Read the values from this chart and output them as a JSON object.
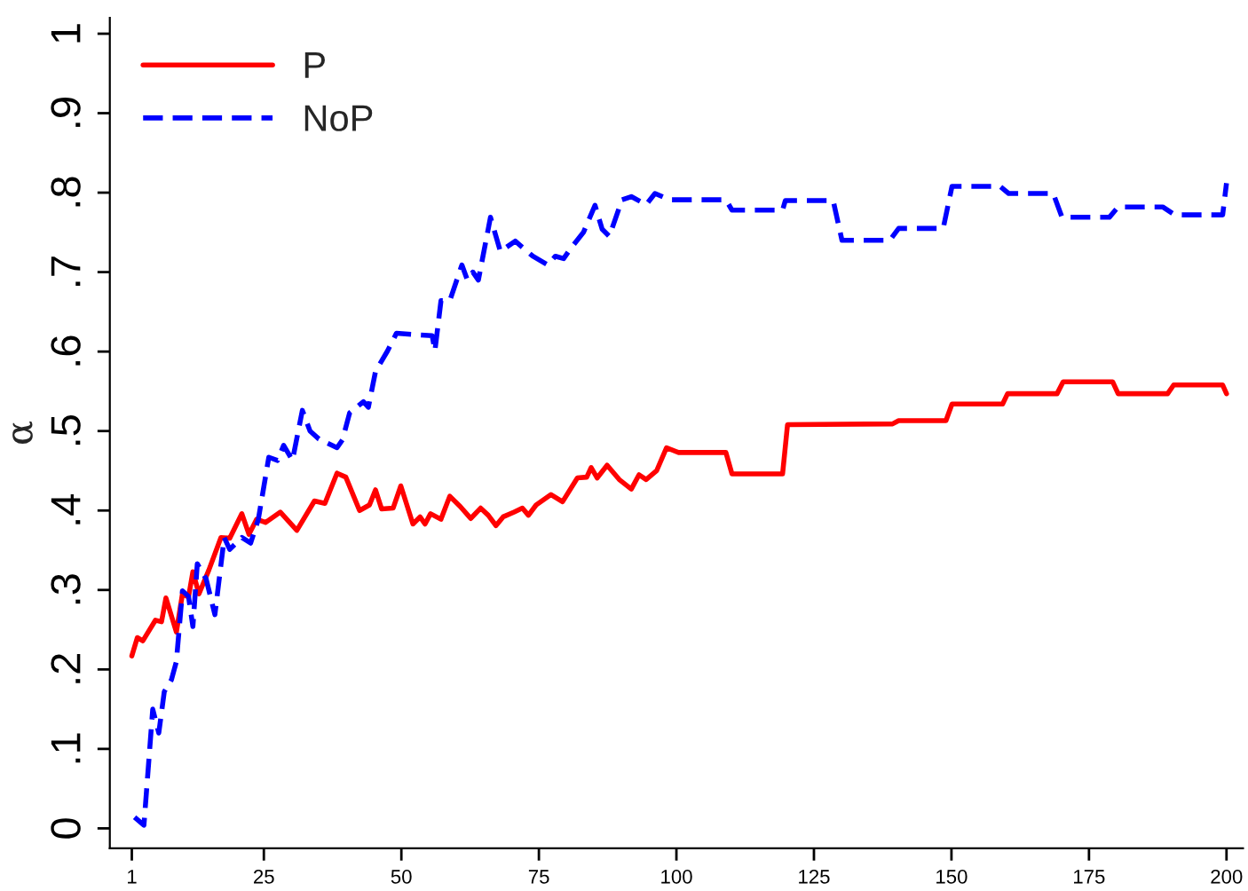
{
  "chart_data": {
    "type": "line",
    "ylabel": "α",
    "xlim": [
      -3,
      203
    ],
    "xticks": [
      1,
      25,
      50,
      75,
      100,
      125,
      150,
      175,
      200
    ],
    "ylim": [
      -0.025,
      1.02
    ],
    "yticks": [
      {
        "value": 0,
        "label": "0"
      },
      {
        "value": 0.1,
        "label": ".1"
      },
      {
        "value": 0.2,
        "label": ".2"
      },
      {
        "value": 0.3,
        "label": ".3"
      },
      {
        "value": 0.4,
        "label": ".4"
      },
      {
        "value": 0.5,
        "label": ".5"
      },
      {
        "value": 0.6,
        "label": ".6"
      },
      {
        "value": 0.7,
        "label": ".7"
      },
      {
        "value": 0.8,
        "label": ".8"
      },
      {
        "value": 0.9,
        "label": ".9"
      },
      {
        "value": 1,
        "label": "1"
      }
    ],
    "grid": false,
    "legend": "top left",
    "series": [
      {
        "name": "P",
        "color": "#ff0000",
        "line_style": "solid",
        "x": [
          1,
          2,
          3,
          5.3,
          6.4,
          7.2,
          9.1,
          10.2,
          11.3,
          12.1,
          13.2,
          15,
          17.2,
          18.8,
          21,
          22.3,
          23.7,
          25.3,
          28,
          31,
          34.2,
          36.1,
          38.3,
          39.9,
          42.4,
          44.2,
          45.3,
          46.4,
          48.5,
          49.9,
          52.1,
          53.4,
          54.3,
          55.3,
          57.2,
          58.8,
          60.7,
          62.6,
          64.4,
          65.8,
          67.2,
          68.5,
          70.5,
          72,
          73.1,
          74.5,
          77.2,
          79.3,
          82,
          83.7,
          84.5,
          85.6,
          87.4,
          89.6,
          91.8,
          93.2,
          94.5,
          96.4,
          98.2,
          100.4,
          109,
          110.1,
          119.3,
          120.2,
          139.3,
          140.4,
          149,
          150.1,
          159.3,
          160.2,
          169.2,
          170.3,
          179.3,
          180.3,
          189.3,
          190.4,
          199.3,
          200
        ],
        "values": [
          0.217,
          0.24,
          0.236,
          0.262,
          0.26,
          0.29,
          0.247,
          0.295,
          0.291,
          0.323,
          0.295,
          0.325,
          0.366,
          0.365,
          0.396,
          0.37,
          0.389,
          0.385,
          0.398,
          0.375,
          0.412,
          0.409,
          0.447,
          0.442,
          0.4,
          0.407,
          0.426,
          0.402,
          0.403,
          0.431,
          0.383,
          0.392,
          0.383,
          0.396,
          0.389,
          0.418,
          0.405,
          0.39,
          0.403,
          0.394,
          0.381,
          0.392,
          0.398,
          0.403,
          0.394,
          0.407,
          0.42,
          0.411,
          0.441,
          0.442,
          0.454,
          0.441,
          0.457,
          0.439,
          0.427,
          0.445,
          0.439,
          0.45,
          0.479,
          0.473,
          0.473,
          0.446,
          0.446,
          0.508,
          0.509,
          0.513,
          0.513,
          0.534,
          0.534,
          0.547,
          0.547,
          0.562,
          0.562,
          0.547,
          0.547,
          0.558,
          0.558,
          0.547
        ]
      },
      {
        "name": "NoP",
        "color": "#0000ff",
        "line_style": "dashed",
        "x": [
          1.5,
          3.2,
          4.8,
          5.9,
          6.9,
          8.2,
          9.1,
          10.2,
          11.3,
          12.1,
          12.9,
          14.5,
          16.1,
          17.8,
          18.8,
          21,
          22.6,
          24,
          25.9,
          27.5,
          28.6,
          30.2,
          32,
          33.4,
          35,
          38.3,
          39.3,
          40.6,
          43.1,
          44,
          45.3,
          47.5,
          49.1,
          55.6,
          56.1,
          57.2,
          58.8,
          61,
          62,
          63,
          64,
          66.2,
          68,
          70.7,
          73.9,
          76.6,
          78,
          79.5,
          80.8,
          83.1,
          85.2,
          86.5,
          87.8,
          90.1,
          91.8,
          94.5,
          96.1,
          98.8,
          109,
          110.1,
          119.3,
          119.8,
          128.5,
          130.1,
          138.8,
          140.4,
          148.5,
          150.1,
          158.8,
          160.4,
          168.5,
          170.1,
          178.7,
          180.3,
          188.4,
          190.6,
          199.3,
          200
        ],
        "values": [
          0.014,
          0.004,
          0.15,
          0.12,
          0.172,
          0.187,
          0.21,
          0.299,
          0.292,
          0.254,
          0.333,
          0.314,
          0.269,
          0.366,
          0.351,
          0.366,
          0.359,
          0.389,
          0.467,
          0.463,
          0.482,
          0.463,
          0.526,
          0.5,
          0.49,
          0.479,
          0.489,
          0.523,
          0.537,
          0.53,
          0.575,
          0.601,
          0.623,
          0.62,
          0.601,
          0.664,
          0.664,
          0.709,
          0.69,
          0.7,
          0.69,
          0.769,
          0.726,
          0.739,
          0.72,
          0.709,
          0.72,
          0.717,
          0.73,
          0.75,
          0.784,
          0.754,
          0.745,
          0.791,
          0.795,
          0.785,
          0.799,
          0.791,
          0.791,
          0.778,
          0.778,
          0.79,
          0.79,
          0.74,
          0.74,
          0.755,
          0.755,
          0.808,
          0.808,
          0.799,
          0.799,
          0.769,
          0.769,
          0.782,
          0.782,
          0.772,
          0.772,
          0.812
        ]
      }
    ]
  }
}
